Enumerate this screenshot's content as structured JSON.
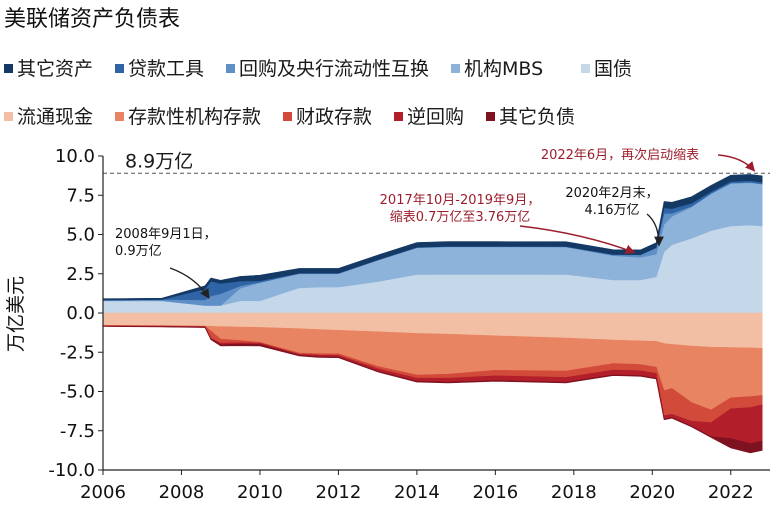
{
  "chart_data": {
    "type": "area",
    "title": "美联储资产负债表",
    "ylabel": "万亿美元",
    "xlabel": "",
    "xlim": [
      2006,
      2023
    ],
    "ylim": [
      -10,
      10
    ],
    "x_ticks": [
      "2006",
      "2008",
      "2010",
      "2012",
      "2014",
      "2016",
      "2018",
      "2020",
      "2022"
    ],
    "y_ticks": [
      "10.0",
      "7.5",
      "5.0",
      "2.5",
      "0.0",
      "-2.5",
      "-5.0",
      "-7.5",
      "-10.0"
    ],
    "x": [
      2006.0,
      2007.5,
      2008.6,
      2008.75,
      2009.0,
      2009.5,
      2010.0,
      2011.0,
      2011.5,
      2012.0,
      2013.0,
      2014.0,
      2014.8,
      2016.0,
      2017.8,
      2019.0,
      2019.7,
      2020.1,
      2020.3,
      2020.5,
      2021.0,
      2021.5,
      2022.0,
      2022.5,
      2022.8
    ],
    "asset_series": [
      {
        "name": "国债",
        "color": "#c5d8ea",
        "values": [
          0.78,
          0.78,
          0.48,
          0.48,
          0.48,
          0.78,
          0.78,
          1.6,
          1.65,
          1.65,
          2.0,
          2.45,
          2.46,
          2.46,
          2.45,
          2.1,
          2.1,
          2.3,
          3.9,
          4.35,
          4.75,
          5.25,
          5.55,
          5.6,
          5.55
        ]
      },
      {
        "name": "机构MBS",
        "color": "#8eb3da",
        "values": [
          0,
          0,
          0,
          0,
          0,
          0.8,
          1.15,
          0.9,
          0.85,
          0.85,
          1.35,
          1.7,
          1.75,
          1.75,
          1.75,
          1.55,
          1.45,
          1.45,
          1.75,
          1.8,
          2.0,
          2.35,
          2.7,
          2.7,
          2.65
        ]
      },
      {
        "name": "回购及央行流动性互换",
        "color": "#5f8fc6",
        "values": [
          0.05,
          0.08,
          0.35,
          0.6,
          0.75,
          0.15,
          0.03,
          0.02,
          0.02,
          0.02,
          0.02,
          0.02,
          0.02,
          0.02,
          0.02,
          0.06,
          0.15,
          0.4,
          0.7,
          0.2,
          0.05,
          0.03,
          0.03,
          0.03,
          0.03
        ]
      },
      {
        "name": "贷款工具",
        "color": "#2f65a7",
        "values": [
          0,
          0,
          0.7,
          0.95,
          0.65,
          0.3,
          0.1,
          0.02,
          0.02,
          0.02,
          0.02,
          0.02,
          0.02,
          0.02,
          0.02,
          0.02,
          0.02,
          0.02,
          0.35,
          0.3,
          0.2,
          0.1,
          0.1,
          0.1,
          0.1
        ]
      },
      {
        "name": "其它资产",
        "color": "#153965",
        "values": [
          0.08,
          0.08,
          0.2,
          0.2,
          0.2,
          0.3,
          0.35,
          0.3,
          0.3,
          0.3,
          0.3,
          0.3,
          0.3,
          0.3,
          0.3,
          0.3,
          0.3,
          0.3,
          0.4,
          0.4,
          0.4,
          0.4,
          0.4,
          0.4,
          0.4
        ]
      }
    ],
    "liability_series": [
      {
        "name": "流通现金",
        "color": "#f3bfa4",
        "values": [
          -0.78,
          -0.8,
          -0.83,
          -0.85,
          -0.87,
          -0.9,
          -0.92,
          -1.0,
          -1.05,
          -1.1,
          -1.2,
          -1.3,
          -1.35,
          -1.45,
          -1.6,
          -1.72,
          -1.78,
          -1.8,
          -1.95,
          -2.0,
          -2.1,
          -2.18,
          -2.2,
          -2.22,
          -2.25
        ]
      },
      {
        "name": "存款性机构存款",
        "color": "#e98463",
        "values": [
          -0.02,
          -0.02,
          -0.02,
          -0.3,
          -0.8,
          -0.85,
          -0.95,
          -1.55,
          -1.55,
          -1.5,
          -2.2,
          -2.65,
          -2.55,
          -2.2,
          -2.1,
          -1.5,
          -1.5,
          -1.65,
          -3.0,
          -2.8,
          -3.6,
          -4.0,
          -3.2,
          -3.1,
          -3.0
        ]
      },
      {
        "name": "财政存款",
        "color": "#d24b3a",
        "values": [
          -0.02,
          -0.02,
          -0.02,
          -0.45,
          -0.25,
          -0.15,
          -0.05,
          -0.08,
          -0.08,
          -0.1,
          -0.15,
          -0.2,
          -0.25,
          -0.35,
          -0.4,
          -0.42,
          -0.4,
          -0.4,
          -1.6,
          -1.65,
          -1.2,
          -0.8,
          -0.7,
          -0.7,
          -0.6
        ]
      },
      {
        "name": "逆回购",
        "color": "#b21f2a",
        "values": [
          -0.02,
          -0.03,
          -0.03,
          -0.05,
          -0.1,
          -0.08,
          -0.08,
          -0.05,
          -0.1,
          -0.1,
          -0.15,
          -0.2,
          -0.25,
          -0.3,
          -0.3,
          -0.3,
          -0.3,
          -0.3,
          -0.2,
          -0.2,
          -0.3,
          -0.9,
          -1.9,
          -2.3,
          -2.3
        ]
      },
      {
        "name": "其它负债",
        "color": "#7f1220",
        "values": [
          -0.02,
          -0.02,
          -0.03,
          -0.05,
          -0.08,
          -0.1,
          -0.1,
          -0.05,
          -0.05,
          -0.05,
          -0.05,
          -0.05,
          -0.05,
          -0.05,
          -0.05,
          -0.05,
          -0.05,
          -0.05,
          -0.05,
          -0.05,
          -0.05,
          -0.05,
          -0.6,
          -0.6,
          -0.6
        ]
      }
    ],
    "legend_row1": [
      "其它资产",
      "贷款工具",
      "回购及央行流动性互换",
      "机构MBS",
      "国债"
    ],
    "legend_row2": [
      "流通现金",
      "存款性机构存款",
      "财政存款",
      "逆回购",
      "其它负债"
    ],
    "reference_line": {
      "value": 8.9,
      "label": "8.9万亿"
    },
    "annotations": [
      {
        "lines": [
          "2008年9月1日，",
          "0.9万亿"
        ],
        "point": [
          2008.65,
          0.9
        ],
        "style": "dark"
      },
      {
        "lines": [
          "2017年10月-2019年9月，",
          "缩表0.7万亿至3.76万亿"
        ],
        "point": [
          2019.7,
          3.8
        ],
        "style": "red"
      },
      {
        "lines": [
          "2020年2月末，",
          "4.16万亿"
        ],
        "point": [
          2020.12,
          4.2
        ],
        "style": "dark"
      },
      {
        "lines": [
          "2022年6月，再次启动缩表"
        ],
        "point": [
          2022.45,
          8.95
        ],
        "style": "red"
      }
    ]
  }
}
